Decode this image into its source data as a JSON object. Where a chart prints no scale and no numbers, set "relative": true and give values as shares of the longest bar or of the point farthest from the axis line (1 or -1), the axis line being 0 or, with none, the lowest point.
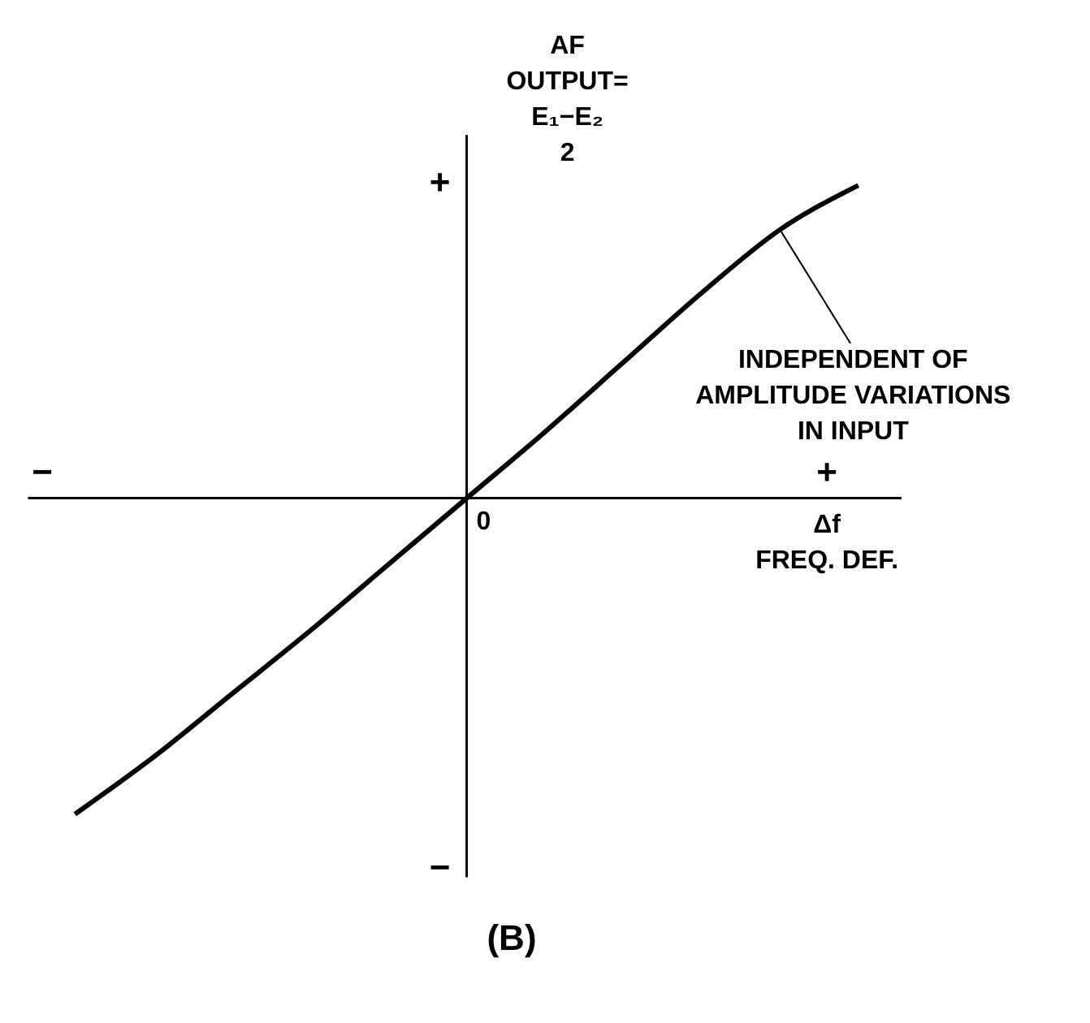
{
  "chart_data": {
    "type": "line",
    "relative": true,
    "title": "(B)",
    "xlabel": "Δf\nFREQ. DEF.",
    "ylabel": "AF\nOUTPUT=\nE₁−E₂\n2",
    "marker": "none",
    "line_style": "solid",
    "categories": [
      null,
      null,
      null,
      null,
      null,
      null,
      null,
      null,
      null,
      null,
      null
    ],
    "series": [
      {
        "color": "#000000",
        "values": [
          -1,
          -0.82,
          -0.62,
          -0.42,
          -0.21,
          0,
          0.21,
          0.43,
          0.65,
          0.85,
          0.99
        ]
      }
    ],
    "annotations": [
      "INDEPENDENT OF\nAMPLITUDE VARIATIONS\nIN INPUT",
      "+",
      "−",
      "+",
      "−",
      "0"
    ]
  }
}
